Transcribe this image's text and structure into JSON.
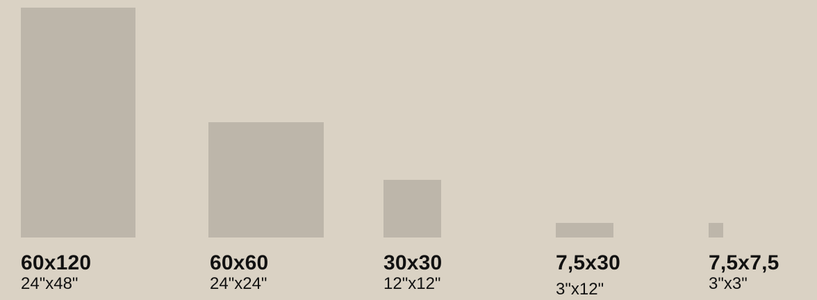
{
  "colors": {
    "background": "#dad2c4",
    "tile": "#bdb6aa",
    "text": "#111111"
  },
  "sizes": [
    {
      "metric": "60x120",
      "imperial": "24\"x48\""
    },
    {
      "metric": "60x60",
      "imperial": "24\"x24\""
    },
    {
      "metric": "30x30",
      "imperial": "12\"x12\""
    },
    {
      "metric": "7,5x30",
      "imperial": "3\"x12\""
    },
    {
      "metric": "7,5x7,5",
      "imperial": "3\"x3\""
    }
  ]
}
